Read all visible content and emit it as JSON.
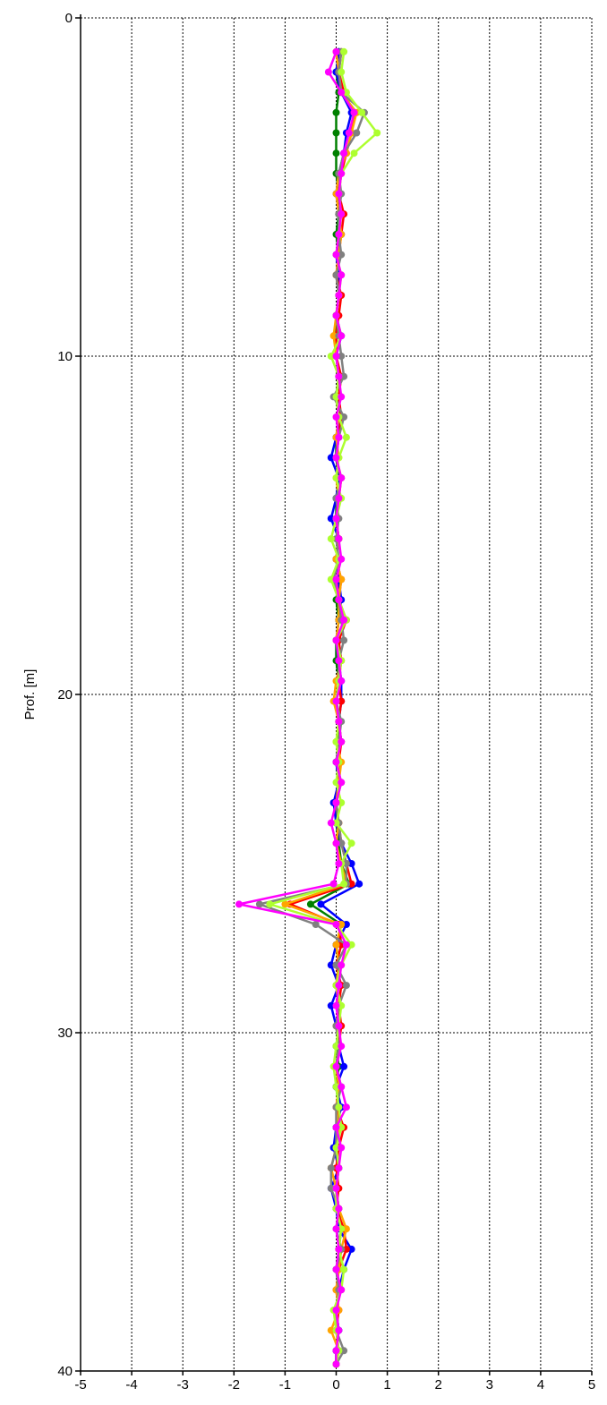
{
  "chart_data": {
    "type": "line",
    "title": "",
    "xlabel": "",
    "ylabel": "Prof. [m]",
    "xlim": [
      -5,
      5
    ],
    "ylim": [
      0,
      40
    ],
    "y_inverted": true,
    "grid": true,
    "legend": "none",
    "x_ticks": [
      -5,
      -4,
      -3,
      -2,
      -1,
      0,
      1,
      2,
      3,
      4,
      5
    ],
    "y_ticks": [
      0,
      10,
      20,
      30,
      40
    ],
    "depth": [
      1.0,
      1.6,
      2.2,
      2.8,
      3.4,
      4.0,
      4.6,
      5.2,
      5.8,
      6.4,
      7.0,
      7.6,
      8.2,
      8.8,
      9.4,
      10.0,
      10.6,
      11.2,
      11.8,
      12.4,
      13.0,
      13.6,
      14.2,
      14.8,
      15.4,
      16.0,
      16.6,
      17.2,
      17.8,
      18.4,
      19.0,
      19.6,
      20.2,
      20.8,
      21.4,
      22.0,
      22.6,
      23.2,
      23.8,
      24.4,
      25.0,
      25.6,
      26.2,
      26.8,
      27.4,
      28.0,
      28.6,
      29.2,
      29.8,
      30.4,
      31.0,
      31.6,
      32.2,
      32.8,
      33.4,
      34.0,
      34.6,
      35.2,
      35.8,
      36.4,
      37.0,
      37.6,
      38.2,
      38.8,
      39.4,
      39.8
    ],
    "series": [
      {
        "color": "#008000",
        "values": [
          0.05,
          0.0,
          0.05,
          0.0,
          0.0,
          0.0,
          0.0,
          0.05,
          0.05,
          0.0,
          0.05,
          0.0,
          0.05,
          0.0,
          0.0,
          0.0,
          0.05,
          0.0,
          0.05,
          0.0,
          0.0,
          0.05,
          0.0,
          0.0,
          0.05,
          0.0,
          0.05,
          0.0,
          0.05,
          0.0,
          0.0,
          0.05,
          0.0,
          0.05,
          0.05,
          0.0,
          0.05,
          0.0,
          0.0,
          0.05,
          0.1,
          0.25,
          -0.5,
          0.1,
          0.0,
          0.05,
          0.0,
          0.05,
          0.05,
          0.0,
          0.05,
          0.0,
          0.05,
          0.0,
          0.0,
          0.05,
          0.0,
          0.05,
          0.1,
          0.05,
          0.0,
          0.05,
          0.0,
          0.05,
          0.0,
          0.0
        ]
      },
      {
        "color": "#0000ff",
        "values": [
          0.05,
          0.0,
          0.1,
          0.3,
          0.2,
          0.15,
          0.05,
          0.0,
          0.05,
          0.1,
          0.0,
          0.05,
          0.05,
          0.0,
          0.1,
          0.0,
          0.05,
          0.0,
          0.1,
          0.0,
          -0.1,
          0.05,
          0.0,
          -0.1,
          0.05,
          0.0,
          0.05,
          0.1,
          0.05,
          0.0,
          0.05,
          0.1,
          0.1,
          0.05,
          0.1,
          0.0,
          0.05,
          -0.05,
          0.0,
          0.1,
          0.3,
          0.45,
          -0.3,
          0.2,
          0.0,
          -0.1,
          0.05,
          -0.1,
          0.0,
          0.05,
          0.15,
          0.0,
          0.1,
          0.0,
          -0.05,
          0.05,
          -0.1,
          0.0,
          0.05,
          0.3,
          0.15,
          0.05,
          0.0,
          0.05,
          0.0,
          0.0
        ]
      },
      {
        "color": "#ff0000",
        "values": [
          0.1,
          0.05,
          0.15,
          0.35,
          0.3,
          0.2,
          0.1,
          0.05,
          0.15,
          0.1,
          0.05,
          0.0,
          0.1,
          0.05,
          0.0,
          0.0,
          0.1,
          0.05,
          0.1,
          0.05,
          0.0,
          0.1,
          0.05,
          0.0,
          0.05,
          0.0,
          0.1,
          0.05,
          0.2,
          0.05,
          0.1,
          0.05,
          0.1,
          0.05,
          0.1,
          0.05,
          0.05,
          0.0,
          0.05,
          0.1,
          0.2,
          0.3,
          -0.9,
          0.05,
          0.1,
          0.0,
          0.1,
          0.05,
          0.1,
          0.05,
          0.0,
          0.05,
          0.0,
          0.15,
          0.05,
          0.0,
          0.05,
          0.0,
          0.15,
          0.2,
          0.05,
          0.0,
          0.05,
          0.0,
          0.05,
          0.0
        ]
      },
      {
        "color": "#ffa500",
        "values": [
          0.0,
          0.05,
          0.1,
          0.4,
          0.3,
          0.2,
          0.05,
          0.0,
          0.05,
          0.1,
          0.05,
          0.0,
          0.05,
          0.0,
          -0.05,
          0.0,
          0.05,
          0.0,
          0.05,
          0.0,
          0.05,
          0.0,
          0.05,
          0.0,
          0.05,
          0.0,
          0.1,
          0.05,
          0.05,
          0.0,
          0.1,
          0.0,
          -0.05,
          0.05,
          0.0,
          0.1,
          0.05,
          0.0,
          0.05,
          0.0,
          0.1,
          0.2,
          -1.0,
          0.1,
          0.0,
          0.05,
          0.0,
          0.05,
          0.0,
          0.05,
          0.0,
          0.05,
          0.0,
          0.05,
          0.0,
          -0.1,
          0.0,
          0.05,
          0.2,
          0.1,
          0.05,
          0.0,
          0.05,
          -0.1,
          0.05,
          0.0
        ]
      },
      {
        "color": "#808080",
        "values": [
          0.1,
          0.05,
          0.1,
          0.55,
          0.4,
          0.15,
          0.05,
          0.1,
          0.05,
          0.05,
          0.1,
          0.0,
          0.05,
          0.0,
          0.05,
          0.1,
          0.15,
          -0.05,
          0.15,
          0.05,
          0.0,
          0.1,
          0.0,
          0.05,
          0.0,
          0.05,
          -0.05,
          0.05,
          0.1,
          0.15,
          0.05,
          0.05,
          0.0,
          0.1,
          0.05,
          0.0,
          0.1,
          0.0,
          0.05,
          0.1,
          0.2,
          0.2,
          -1.5,
          -0.4,
          0.2,
          0.0,
          0.2,
          0.05,
          0.0,
          0.05,
          0.0,
          0.1,
          0.0,
          0.0,
          0.0,
          -0.1,
          -0.1,
          0.05,
          0.0,
          0.1,
          0.0,
          0.05,
          0.0,
          0.0,
          0.15,
          0.0
        ]
      },
      {
        "color": "#adff2f",
        "values": [
          0.15,
          0.1,
          0.2,
          0.5,
          0.8,
          0.35,
          0.1,
          0.05,
          0.1,
          0.05,
          0.0,
          0.1,
          0.05,
          0.0,
          0.1,
          -0.1,
          0.05,
          0.0,
          0.05,
          0.2,
          0.05,
          0.0,
          0.1,
          0.0,
          -0.1,
          0.05,
          -0.1,
          0.05,
          0.2,
          0.0,
          0.1,
          0.05,
          0.0,
          0.05,
          0.0,
          0.05,
          0.0,
          0.1,
          0.0,
          0.3,
          0.1,
          0.15,
          -1.3,
          0.0,
          0.3,
          0.1,
          0.0,
          0.1,
          0.05,
          0.0,
          -0.05,
          0.0,
          0.05,
          0.1,
          0.0,
          0.05,
          0.0,
          0.0,
          0.1,
          0.05,
          0.15,
          0.1,
          -0.05,
          0.0,
          0.05,
          0.0
        ]
      },
      {
        "color": "#ff00ff",
        "values": [
          0.0,
          -0.15,
          0.1,
          0.35,
          0.25,
          0.15,
          0.1,
          0.05,
          0.1,
          0.05,
          0.0,
          0.1,
          0.05,
          0.0,
          0.1,
          0.0,
          0.05,
          0.1,
          0.0,
          0.05,
          0.0,
          0.1,
          0.05,
          0.0,
          0.05,
          0.1,
          0.0,
          0.05,
          0.15,
          0.0,
          0.05,
          0.1,
          0.0,
          0.05,
          0.1,
          0.0,
          0.1,
          0.0,
          -0.1,
          0.0,
          0.05,
          -0.05,
          -1.9,
          0.0,
          0.2,
          0.1,
          0.05,
          0.0,
          0.05,
          0.1,
          0.0,
          0.1,
          0.2,
          0.0,
          0.1,
          0.05,
          0.0,
          0.05,
          0.0,
          0.05,
          0.0,
          0.1,
          0.0,
          0.05,
          0.0,
          0.0
        ]
      }
    ]
  }
}
